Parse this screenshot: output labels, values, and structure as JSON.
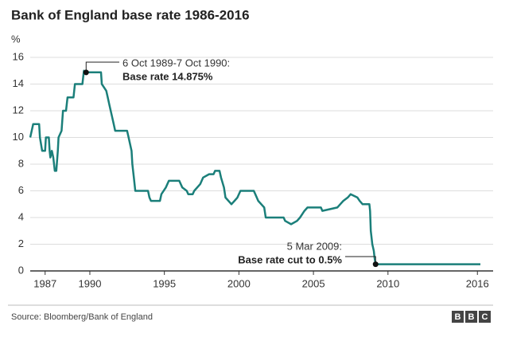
{
  "chart_data": {
    "type": "line",
    "title": "Bank of England base rate 1986-2016",
    "ylabel": "%",
    "x": [
      1986.0,
      1986.2,
      1986.6,
      1986.65,
      1986.8,
      1987.0,
      1987.05,
      1987.25,
      1987.3,
      1987.35,
      1987.45,
      1987.55,
      1987.65,
      1987.75,
      1987.85,
      1987.9,
      1988.1,
      1988.2,
      1988.4,
      1988.5,
      1988.9,
      1989.0,
      1989.5,
      1989.6,
      1989.75,
      1990.75,
      1990.8,
      1991.1,
      1991.2,
      1991.3,
      1991.4,
      1991.5,
      1991.6,
      1991.7,
      1992.5,
      1992.6,
      1992.8,
      1992.85,
      1992.95,
      1993.05,
      1993.9,
      1994.0,
      1994.1,
      1994.7,
      1994.8,
      1995.1,
      1995.3,
      1996.0,
      1996.2,
      1996.5,
      1996.6,
      1996.9,
      1997.0,
      1997.4,
      1997.6,
      1998.0,
      1998.3,
      1998.4,
      1998.7,
      1998.8,
      1999.0,
      1999.1,
      1999.3,
      1999.5,
      1999.7,
      1999.9,
      2000.1,
      2001.0,
      2001.1,
      2001.3,
      2001.7,
      2001.8,
      2003.0,
      2003.1,
      2003.5,
      2003.9,
      2004.1,
      2004.4,
      2004.6,
      2005.5,
      2005.6,
      2006.6,
      2006.8,
      2007.0,
      2007.3,
      2007.5,
      2007.95,
      2008.1,
      2008.3,
      2008.75,
      2008.8,
      2008.85,
      2008.95,
      2009.05,
      2009.1,
      2009.17,
      2016.2
    ],
    "series": [
      {
        "name": "Base rate",
        "color": "#1b7f7a",
        "values": [
          10,
          11,
          11,
          10,
          9,
          9,
          10,
          10,
          9,
          8.5,
          9,
          8.5,
          7.5,
          7.5,
          9,
          10,
          10.5,
          12,
          12,
          13,
          13,
          14,
          14,
          15,
          14.875,
          14.875,
          14,
          13.5,
          13,
          12.5,
          12,
          11.5,
          11,
          10.5,
          10.5,
          10,
          9,
          8,
          7,
          6,
          6,
          5.5,
          5.25,
          5.25,
          5.75,
          6.25,
          6.75,
          6.75,
          6.25,
          6,
          5.75,
          5.75,
          6,
          6.5,
          7,
          7.25,
          7.25,
          7.5,
          7.5,
          7,
          6.25,
          5.5,
          5.25,
          5,
          5.25,
          5.5,
          6,
          6,
          5.75,
          5.25,
          4.75,
          4,
          4,
          3.75,
          3.5,
          3.75,
          4,
          4.5,
          4.75,
          4.75,
          4.5,
          4.75,
          5,
          5.25,
          5.5,
          5.75,
          5.5,
          5.25,
          5,
          5,
          4.5,
          3,
          2,
          1.5,
          1,
          0.5,
          0.5
        ]
      }
    ],
    "xlim": [
      1986.0,
      2016.2
    ],
    "xticks": [
      1987,
      1990,
      1995,
      2000,
      2005,
      2010,
      2016
    ],
    "ylim": [
      0,
      16
    ],
    "yticks": [
      0,
      2,
      4,
      6,
      8,
      10,
      12,
      14,
      16
    ],
    "grid": true,
    "annotations": [
      {
        "x": 1989.75,
        "y": 14.875,
        "lines": [
          "6 Oct 1989-7 Oct 1990:",
          "Base rate 14.875%"
        ]
      },
      {
        "x": 2009.17,
        "y": 0.5,
        "lines": [
          "5 Mar 2009:",
          "Base rate cut to 0.5%"
        ]
      }
    ]
  },
  "source": "Source: Bloomberg/Bank of England",
  "logo": [
    "B",
    "B",
    "C"
  ]
}
